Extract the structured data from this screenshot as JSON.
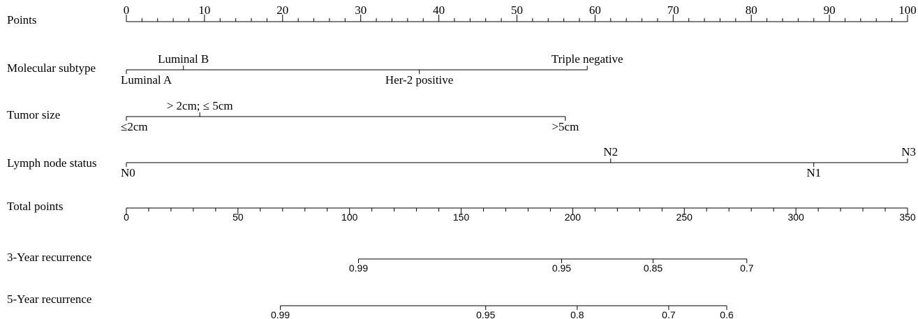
{
  "chart_data": {
    "type": "nomogram",
    "title": "",
    "points_scale": {
      "label": "Points",
      "range": [
        0,
        100
      ],
      "ticks": [
        0,
        10,
        20,
        30,
        40,
        50,
        60,
        70,
        80,
        90,
        100
      ],
      "minor_step": 2
    },
    "variables": [
      {
        "name": "Molecular subtype",
        "levels": [
          {
            "label": "Luminal A",
            "points": 0,
            "label_position": "below"
          },
          {
            "label": "Luminal B",
            "points": 7.3,
            "label_position": "above"
          },
          {
            "label": "Her-2 positive",
            "points": 37.5,
            "label_position": "below"
          },
          {
            "label": "Triple negative",
            "points": 59,
            "label_position": "above"
          }
        ]
      },
      {
        "name": "Tumor size",
        "levels": [
          {
            "label": "≤2cm",
            "points": 0,
            "label_position": "below"
          },
          {
            "label": "> 2cm; ≤ 5cm",
            "points": 9.4,
            "label_position": "above"
          },
          {
            "label": ">5cm",
            "points": 56.2,
            "label_position": "below"
          }
        ]
      },
      {
        "name": "Lymph node status",
        "levels": [
          {
            "label": "N0",
            "points": 0,
            "label_position": "below"
          },
          {
            "label": "N2",
            "points": 62,
            "label_position": "above"
          },
          {
            "label": "N1",
            "points": 88,
            "label_position": "below"
          },
          {
            "label": "N3",
            "points": 100,
            "label_position": "above"
          }
        ]
      }
    ],
    "total_points_scale": {
      "label": "Total points",
      "range": [
        0,
        350
      ],
      "ticks": [
        0,
        50,
        100,
        150,
        200,
        250,
        300,
        350
      ],
      "minor_step": 10
    },
    "outcomes": [
      {
        "label": "3-Year recurrence",
        "ticks": [
          {
            "label": "0.99",
            "total_points": 104
          },
          {
            "label": "0.95",
            "total_points": 195
          },
          {
            "label": "0.85",
            "total_points": 236
          },
          {
            "label": "0.7",
            "total_points": 278
          }
        ]
      },
      {
        "label": "5-Year recurrence",
        "ticks": [
          {
            "label": "0.99",
            "total_points": 69
          },
          {
            "label": "0.95",
            "total_points": 161
          },
          {
            "label": "0.8",
            "total_points": 202
          },
          {
            "label": "0.7",
            "total_points": 243
          },
          {
            "label": "0.6",
            "total_points": 269
          }
        ]
      }
    ],
    "grid": false,
    "legend": "none",
    "colors": {
      "line": "#000000",
      "background": "#ffffff"
    }
  }
}
